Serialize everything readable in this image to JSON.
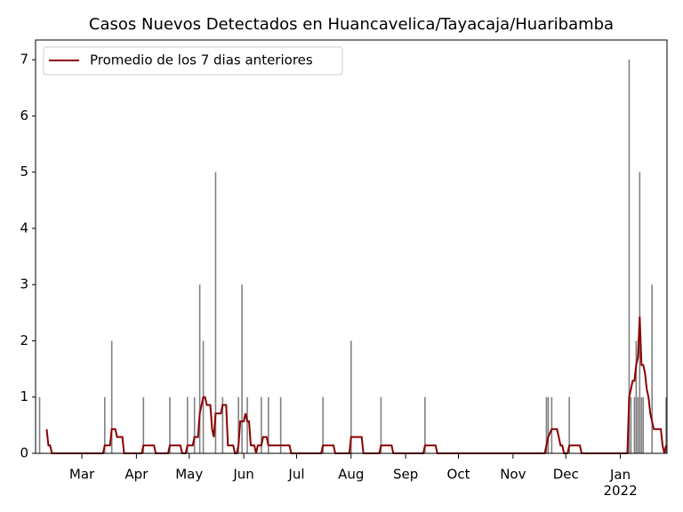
{
  "chart_data": {
    "type": "bar_line",
    "title": "Casos Nuevos Detectados en Huancavelica/Tayacaja/Huaribamba",
    "bars": {
      "color": "#808080",
      "x": [
        4,
        41,
        45,
        63,
        78,
        88,
        92,
        95,
        97,
        104,
        108,
        117,
        119,
        122,
        130,
        134,
        141,
        165,
        181,
        198,
        223,
        292,
        293,
        295,
        305,
        339,
        340,
        342,
        343,
        344,
        345,
        346,
        347,
        352,
        360
      ],
      "values": [
        1,
        1,
        2,
        1,
        1,
        1,
        1,
        3,
        2,
        5,
        1,
        1,
        3,
        1,
        1,
        1,
        1,
        1,
        2,
        1,
        1,
        1,
        1,
        1,
        1,
        7,
        1,
        1,
        2,
        1,
        5,
        1,
        1,
        3,
        1
      ]
    },
    "series": [
      {
        "name": "Promedio de los 7 dias anteriores",
        "color": "#8b0000",
        "x": [
          8,
          9,
          10,
          11,
          40,
          41,
          44,
          45,
          47,
          48,
          51,
          52,
          62,
          63,
          69,
          70,
          77,
          78,
          84,
          85,
          87,
          88,
          91,
          92,
          94,
          95,
          97,
          98,
          99,
          101,
          102,
          103,
          104,
          107,
          108,
          110,
          111,
          114,
          115,
          116,
          117,
          118,
          120,
          121,
          122,
          123,
          124,
          126,
          127,
          128,
          130,
          131,
          133,
          134,
          146,
          147,
          164,
          165,
          171,
          172,
          180,
          181,
          187,
          188,
          197,
          198,
          204,
          205,
          222,
          223,
          229,
          230,
          291,
          292,
          293,
          295,
          298,
          299,
          300,
          301,
          302,
          304,
          305,
          311,
          312,
          338,
          339,
          340,
          341,
          342,
          343,
          344,
          345,
          346,
          347,
          348,
          349,
          350,
          351,
          353,
          357,
          358,
          359,
          360
        ],
        "values": [
          0.43,
          0.14,
          0.14,
          0,
          0,
          0.14,
          0.14,
          0.43,
          0.43,
          0.29,
          0.29,
          0,
          0,
          0.14,
          0.14,
          0,
          0,
          0.14,
          0.14,
          0,
          0,
          0.14,
          0.14,
          0.29,
          0.29,
          0.71,
          1,
          1,
          0.86,
          0.86,
          0.43,
          0.29,
          0.71,
          0.71,
          0.86,
          0.86,
          0.14,
          0.14,
          0,
          0,
          0.14,
          0.57,
          0.57,
          0.71,
          0.57,
          0.57,
          0.14,
          0.14,
          0,
          0.14,
          0.14,
          0.29,
          0.29,
          0.14,
          0.14,
          0,
          0,
          0.14,
          0.14,
          0,
          0,
          0.29,
          0.29,
          0,
          0,
          0.14,
          0.14,
          0,
          0,
          0.14,
          0.14,
          0,
          0,
          0.14,
          0.29,
          0.43,
          0.43,
          0.29,
          0.14,
          0.14,
          0,
          0,
          0.14,
          0.14,
          0,
          0,
          1,
          1.14,
          1.29,
          1.29,
          1.57,
          1.71,
          2.43,
          1.57,
          1.57,
          1.43,
          1.14,
          1,
          0.71,
          0.43,
          0.43,
          0.14,
          0,
          0.14
        ]
      }
    ],
    "xlim": [
      1.7,
      360.5
    ],
    "xticks": [
      {
        "value": 28,
        "label": "Mar"
      },
      {
        "value": 59,
        "label": "Apr"
      },
      {
        "value": 89,
        "label": "May"
      },
      {
        "value": 120,
        "label": "Jun"
      },
      {
        "value": 150,
        "label": "Jul"
      },
      {
        "value": 181,
        "label": "Aug"
      },
      {
        "value": 212,
        "label": "Sep"
      },
      {
        "value": 242,
        "label": "Oct"
      },
      {
        "value": 273,
        "label": "Nov"
      },
      {
        "value": 303,
        "label": "Dec"
      },
      {
        "value": 334,
        "label": "Jan\n2022"
      }
    ],
    "ylim": [
      0,
      7.35
    ],
    "yticks": [
      0,
      1,
      2,
      3,
      4,
      5,
      6,
      7
    ],
    "legend": "upper left"
  }
}
